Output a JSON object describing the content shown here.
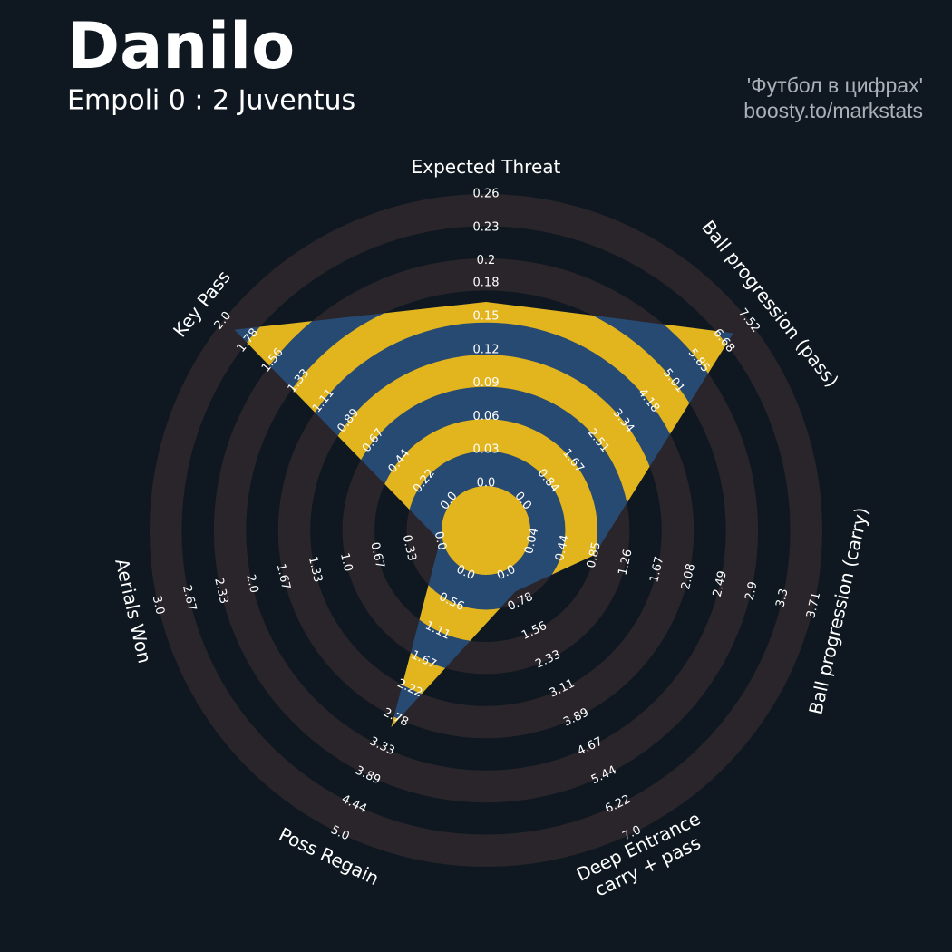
{
  "chart_data": {
    "type": "radar",
    "title": "Danilo",
    "subtitle": "Empoli 0 : 2 Juventus",
    "credits": [
      "'Футбол в цифрах'",
      "boosty.to/markstats"
    ],
    "params": [
      [
        "Expected Threat"
      ],
      [
        "Ball progression (pass)"
      ],
      [
        "Ball progression (carry)"
      ],
      [
        "Deep Entrance",
        "carry + pass"
      ],
      [
        "Poss Regain"
      ],
      [
        "Aerials Won"
      ],
      [
        "Key Pass"
      ]
    ],
    "ranges": [
      [
        0,
        0.26
      ],
      [
        0,
        7.52
      ],
      [
        0.04,
        3.71
      ],
      [
        0,
        7
      ],
      [
        0,
        5
      ],
      [
        0,
        3
      ],
      [
        0,
        2
      ]
    ],
    "ticks": [
      [
        {
          "value": 0,
          "label": "0.0"
        },
        0.03,
        0.06,
        0.09,
        0.12,
        0.15,
        0.18,
        0.2,
        0.23,
        0.26
      ],
      [
        {
          "value": 0,
          "label": "0.0"
        },
        0.84,
        1.67,
        2.51,
        3.34,
        4.18,
        5.01,
        5.85,
        6.68,
        7.52
      ],
      [
        0.04,
        0.44,
        0.85,
        1.26,
        1.67,
        2.08,
        2.49,
        2.9,
        3.3,
        3.71
      ],
      [
        {
          "value": 0,
          "label": "0.0"
        },
        0.78,
        1.56,
        2.33,
        3.11,
        3.89,
        4.67,
        5.44,
        6.22,
        {
          "value": 7,
          "label": "7.0"
        }
      ],
      [
        {
          "value": 0,
          "label": "0.0"
        },
        0.56,
        1.11,
        1.67,
        2.22,
        2.78,
        3.33,
        3.89,
        4.44,
        {
          "value": 5,
          "label": "5.0"
        }
      ],
      [
        {
          "value": 0,
          "label": "0.0"
        },
        0.33,
        0.67,
        {
          "value": 1,
          "label": "1.0"
        },
        1.33,
        1.67,
        {
          "value": 2,
          "label": "2.0"
        },
        2.33,
        2.67,
        {
          "value": 3,
          "label": "3.0"
        }
      ],
      [
        {
          "value": 0,
          "label": "0.0"
        },
        0.22,
        0.44,
        0.67,
        0.89,
        1.11,
        1.33,
        1.56,
        1.78,
        {
          "value": 2,
          "label": "2.0"
        }
      ]
    ],
    "values": [
      0.163,
      7.0,
      0.85,
      0.5,
      2.96,
      0,
      1.9
    ],
    "color": "#274a73",
    "band_color": "#e2b41e",
    "ring_color": "#29252b"
  }
}
